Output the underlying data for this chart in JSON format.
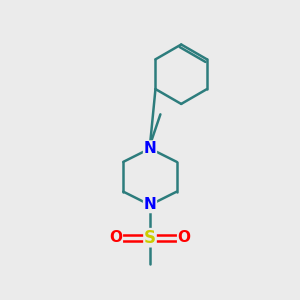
{
  "background_color": "#ebebeb",
  "bond_color": "#2d7d7d",
  "N_color": "#0000ff",
  "S_color": "#cccc00",
  "O_color": "#ff0000",
  "line_width": 1.8,
  "font_size_N": 11,
  "font_size_S": 12,
  "font_size_O": 11,
  "fig_width": 3.0,
  "fig_height": 3.0,
  "xlim": [
    0,
    10
  ],
  "ylim": [
    0,
    10
  ]
}
